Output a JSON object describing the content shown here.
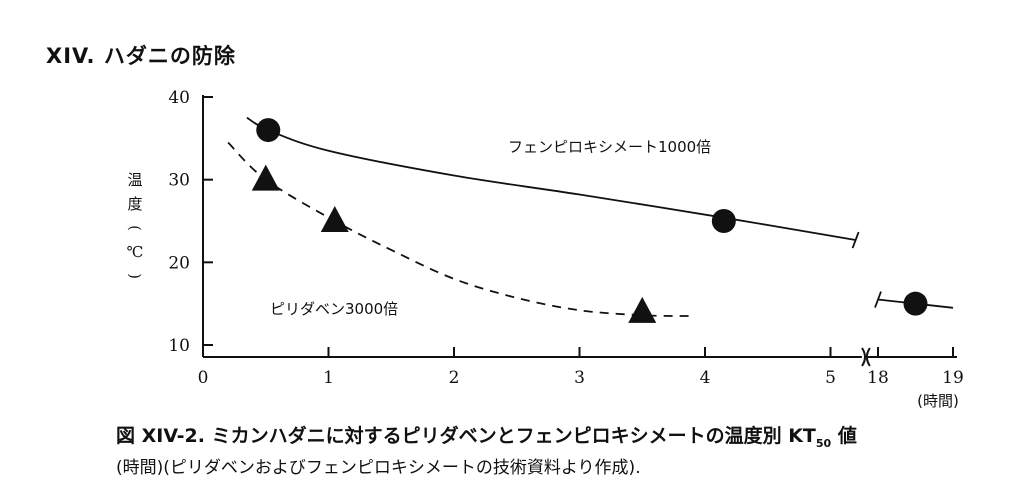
{
  "section_title": "XIV.  ハダニの防除",
  "caption": {
    "main": "図 XIV-2. ミカンハダニに対するピリダベンとフェンピロキシメートの温度別 KT",
    "main_sub": "50",
    "main_tail": " 値",
    "sub": "(時間)(ピリダベンおよびフェンピロキシメートの技術資料より作成)."
  },
  "chart_data": {
    "type": "line",
    "xlabel": "(時間)",
    "ylabel_chars": [
      "温",
      "度",
      "(",
      "℃",
      ")"
    ],
    "x_ticks": [
      "0",
      "1",
      "2",
      "3",
      "4",
      "5",
      "18",
      "19"
    ],
    "y_ticks": [
      "10",
      "20",
      "30",
      "40"
    ],
    "ylim": [
      10,
      40
    ],
    "x_axis_break": "between 5 and 18",
    "series": [
      {
        "name": "フェンピロキシメート1000倍",
        "marker": "circle",
        "line_style": "solid",
        "points": [
          {
            "x": 0.52,
            "y": 36
          },
          {
            "x": 4.15,
            "y": 25
          },
          {
            "x": 18.5,
            "y": 15
          }
        ],
        "curve": [
          [
            0.35,
            37.5
          ],
          [
            0.52,
            36
          ],
          [
            1.0,
            33.5
          ],
          [
            2.0,
            30.5
          ],
          [
            3.0,
            28.2
          ],
          [
            4.15,
            25.4
          ],
          [
            5.2,
            22.7
          ]
        ],
        "curve_after_break": [
          [
            18.0,
            15.5
          ],
          [
            18.5,
            15
          ],
          [
            19.0,
            14.5
          ]
        ]
      },
      {
        "name": "ピリダベン3000倍",
        "marker": "triangle",
        "line_style": "dashed",
        "points": [
          {
            "x": 0.5,
            "y": 30
          },
          {
            "x": 1.05,
            "y": 25
          },
          {
            "x": 3.5,
            "y": 14
          }
        ],
        "curve": [
          [
            0.2,
            34.5
          ],
          [
            0.5,
            30
          ],
          [
            1.05,
            25
          ],
          [
            1.5,
            21.5
          ],
          [
            2.0,
            18.0
          ],
          [
            2.5,
            15.7
          ],
          [
            3.0,
            14.2
          ],
          [
            3.5,
            13.6
          ],
          [
            3.9,
            13.5
          ]
        ]
      }
    ],
    "colors": {
      "ink": "#111111"
    }
  }
}
